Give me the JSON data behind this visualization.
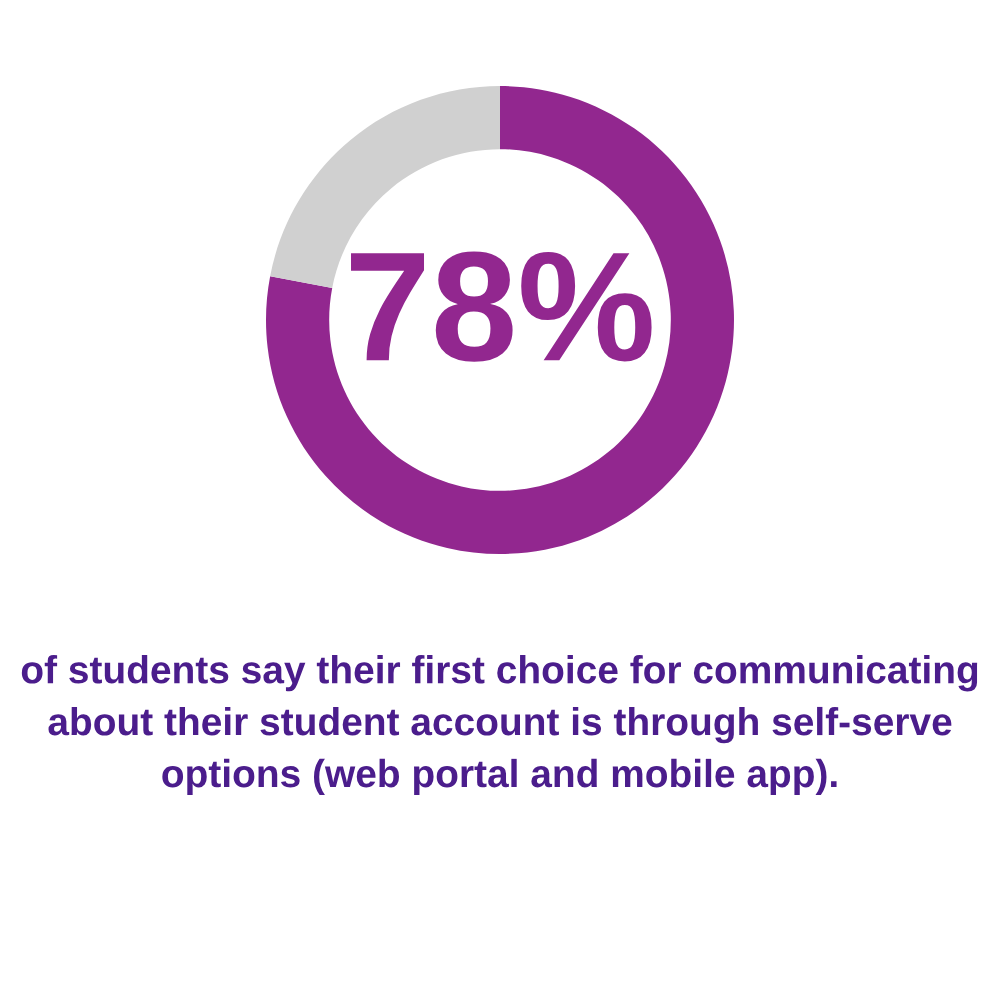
{
  "chart_data": {
    "type": "donut",
    "categories": [
      null,
      null
    ],
    "values": [
      78,
      22
    ],
    "colors": [
      "#92278f",
      "#d0d0d0"
    ],
    "annotations": [
      "78%",
      "of students say their first choice for communicating about their student account is through self-serve options (web portal and mobile app)."
    ],
    "legend": false
  }
}
